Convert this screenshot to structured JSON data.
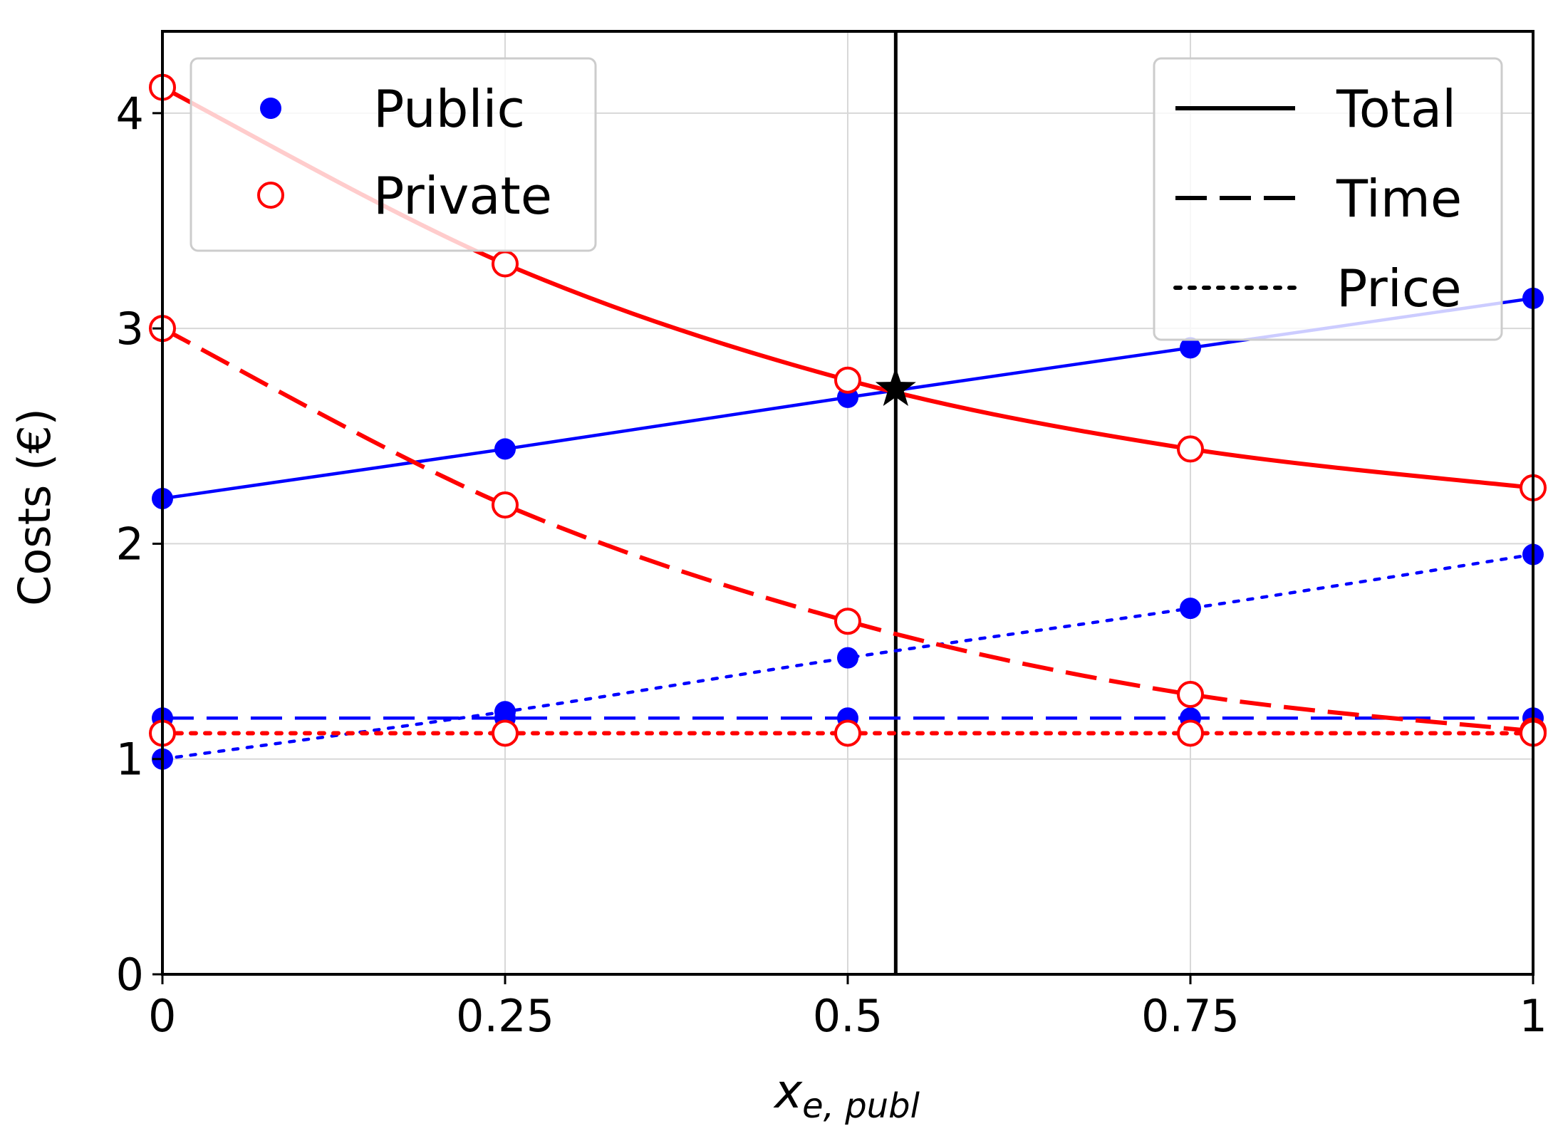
{
  "chart_data": {
    "type": "line",
    "title": "",
    "xlabel_main": "x",
    "xlabel_sub": "e, publ",
    "ylabel": "Costs (€)",
    "xlim": [
      0,
      1
    ],
    "ylim": [
      0,
      4.38
    ],
    "grid": true,
    "x_ticks": [
      {
        "value": 0,
        "label": "0"
      },
      {
        "value": 0.25,
        "label": "0.25"
      },
      {
        "value": 0.5,
        "label": "0.5"
      },
      {
        "value": 0.75,
        "label": "0.75"
      },
      {
        "value": 1,
        "label": "1"
      }
    ],
    "y_ticks": [
      {
        "value": 0,
        "label": "0"
      },
      {
        "value": 1,
        "label": "1"
      },
      {
        "value": 2,
        "label": "2"
      },
      {
        "value": 3,
        "label": "3"
      },
      {
        "value": 4,
        "label": "4"
      }
    ],
    "marker_x": [
      0,
      0.25,
      0.5,
      0.75,
      1
    ],
    "series": [
      {
        "mode": "Public",
        "component": "Total",
        "color": "#0000ff",
        "marker": "filled",
        "linestyle": "solid",
        "values": [
          2.21,
          2.44,
          2.68,
          2.91,
          3.14
        ]
      },
      {
        "mode": "Public",
        "component": "Time",
        "color": "#0000ff",
        "marker": "filled",
        "linestyle": "dashed",
        "values": [
          1.19,
          1.19,
          1.19,
          1.19,
          1.19
        ]
      },
      {
        "mode": "Public",
        "component": "Price",
        "color": "#0000ff",
        "marker": "filled",
        "linestyle": "dotted",
        "values": [
          1.0,
          1.22,
          1.47,
          1.7,
          1.95
        ]
      },
      {
        "mode": "Private",
        "component": "Total",
        "color": "#ff0000",
        "marker": "open",
        "linestyle": "solid",
        "values": [
          4.12,
          3.3,
          2.76,
          2.44,
          2.26
        ]
      },
      {
        "mode": "Private",
        "component": "Time",
        "color": "#ff0000",
        "marker": "open",
        "linestyle": "dashed",
        "values": [
          3.0,
          2.18,
          1.64,
          1.3,
          1.13
        ]
      },
      {
        "mode": "Private",
        "component": "Price",
        "color": "#ff0000",
        "marker": "open",
        "linestyle": "dotted",
        "values": [
          1.12,
          1.12,
          1.12,
          1.12,
          1.12
        ]
      }
    ],
    "equilibrium": {
      "x": 0.535,
      "y": 2.72
    },
    "legend_modes": {
      "placement": "top-left",
      "entries": [
        {
          "label": "Public",
          "color": "#0000ff",
          "marker": "filled"
        },
        {
          "label": "Private",
          "color": "#ff0000",
          "marker": "open"
        }
      ]
    },
    "legend_components": {
      "placement": "top-right",
      "entries": [
        {
          "label": "Total",
          "linestyle": "solid"
        },
        {
          "label": "Time",
          "linestyle": "dashed"
        },
        {
          "label": "Price",
          "linestyle": "dotted"
        }
      ]
    }
  }
}
